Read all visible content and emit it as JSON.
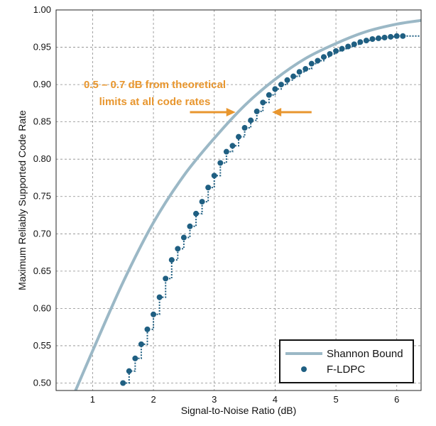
{
  "chart_data": {
    "type": "line",
    "title": "",
    "xlabel": "Signal-to-Noise Ratio (dB)",
    "ylabel": "Maximum Reliably Supported Code Rate",
    "xlim": [
      0.4,
      6.4
    ],
    "ylim": [
      0.49,
      1.0
    ],
    "x_ticks": [
      1,
      2,
      3,
      4,
      5,
      6
    ],
    "x_tick_labels": [
      "1",
      "2",
      "3",
      "4",
      "5",
      "6"
    ],
    "y_ticks": [
      0.5,
      0.55,
      0.6,
      0.65,
      0.7,
      0.75,
      0.8,
      0.85,
      0.9,
      0.95,
      1.0
    ],
    "y_tick_labels": [
      "0.50",
      "0.55",
      "0.60",
      "0.65",
      "0.70",
      "0.75",
      "0.80",
      "0.85",
      "0.90",
      "0.95",
      "1.00"
    ],
    "grid": true,
    "legend_position": "bottom-right",
    "series": [
      {
        "name": "Shannon Bound",
        "style": "line",
        "color": "#9bb8c6",
        "x": [
          0.72,
          1.0,
          1.5,
          2.0,
          2.5,
          3.0,
          3.5,
          4.0,
          4.5,
          5.0,
          5.5,
          6.0,
          6.4
        ],
        "y": [
          0.49,
          0.543,
          0.635,
          0.715,
          0.778,
          0.828,
          0.872,
          0.907,
          0.935,
          0.955,
          0.971,
          0.981,
          0.986
        ]
      },
      {
        "name": "F-LDPC",
        "style": "markers-step",
        "color": "#1f5f82",
        "x": [
          1.5,
          1.6,
          1.7,
          1.8,
          1.9,
          2.0,
          2.1,
          2.2,
          2.3,
          2.4,
          2.5,
          2.6,
          2.7,
          2.8,
          2.9,
          3.0,
          3.1,
          3.2,
          3.3,
          3.4,
          3.5,
          3.6,
          3.7,
          3.8,
          3.9,
          4.0,
          4.1,
          4.2,
          4.3,
          4.4,
          4.5,
          4.6,
          4.7,
          4.8,
          4.9,
          5.0,
          5.1,
          5.2,
          5.3,
          5.4,
          5.5,
          5.6,
          5.7,
          5.8,
          5.9,
          6.0,
          6.1
        ],
        "y": [
          0.5,
          0.516,
          0.533,
          0.552,
          0.572,
          0.592,
          0.615,
          0.64,
          0.665,
          0.68,
          0.695,
          0.71,
          0.727,
          0.743,
          0.762,
          0.778,
          0.795,
          0.81,
          0.818,
          0.83,
          0.842,
          0.852,
          0.864,
          0.876,
          0.886,
          0.894,
          0.9,
          0.906,
          0.911,
          0.917,
          0.921,
          0.928,
          0.932,
          0.937,
          0.941,
          0.945,
          0.948,
          0.951,
          0.954,
          0.957,
          0.959,
          0.961,
          0.962,
          0.963,
          0.964,
          0.965,
          0.965
        ],
        "tail": {
          "x": 6.4,
          "y": 0.965
        }
      }
    ],
    "annotations": [
      {
        "text_lines": [
          "0.5 – 0.7 dB from theoretical",
          "limits at all code rates"
        ],
        "color": "#e8962e",
        "arrows": [
          {
            "from": [
              2.6,
              0.863
            ],
            "to": [
              3.35,
              0.863
            ]
          },
          {
            "from": [
              4.6,
              0.863
            ],
            "to": [
              3.95,
              0.863
            ]
          }
        ]
      }
    ]
  },
  "legend": {
    "items": [
      {
        "label": "Shannon Bound",
        "marker": "line",
        "color": "#9bb8c6"
      },
      {
        "label": "F-LDPC",
        "marker": "dot",
        "color": "#1f5f82"
      }
    ]
  }
}
